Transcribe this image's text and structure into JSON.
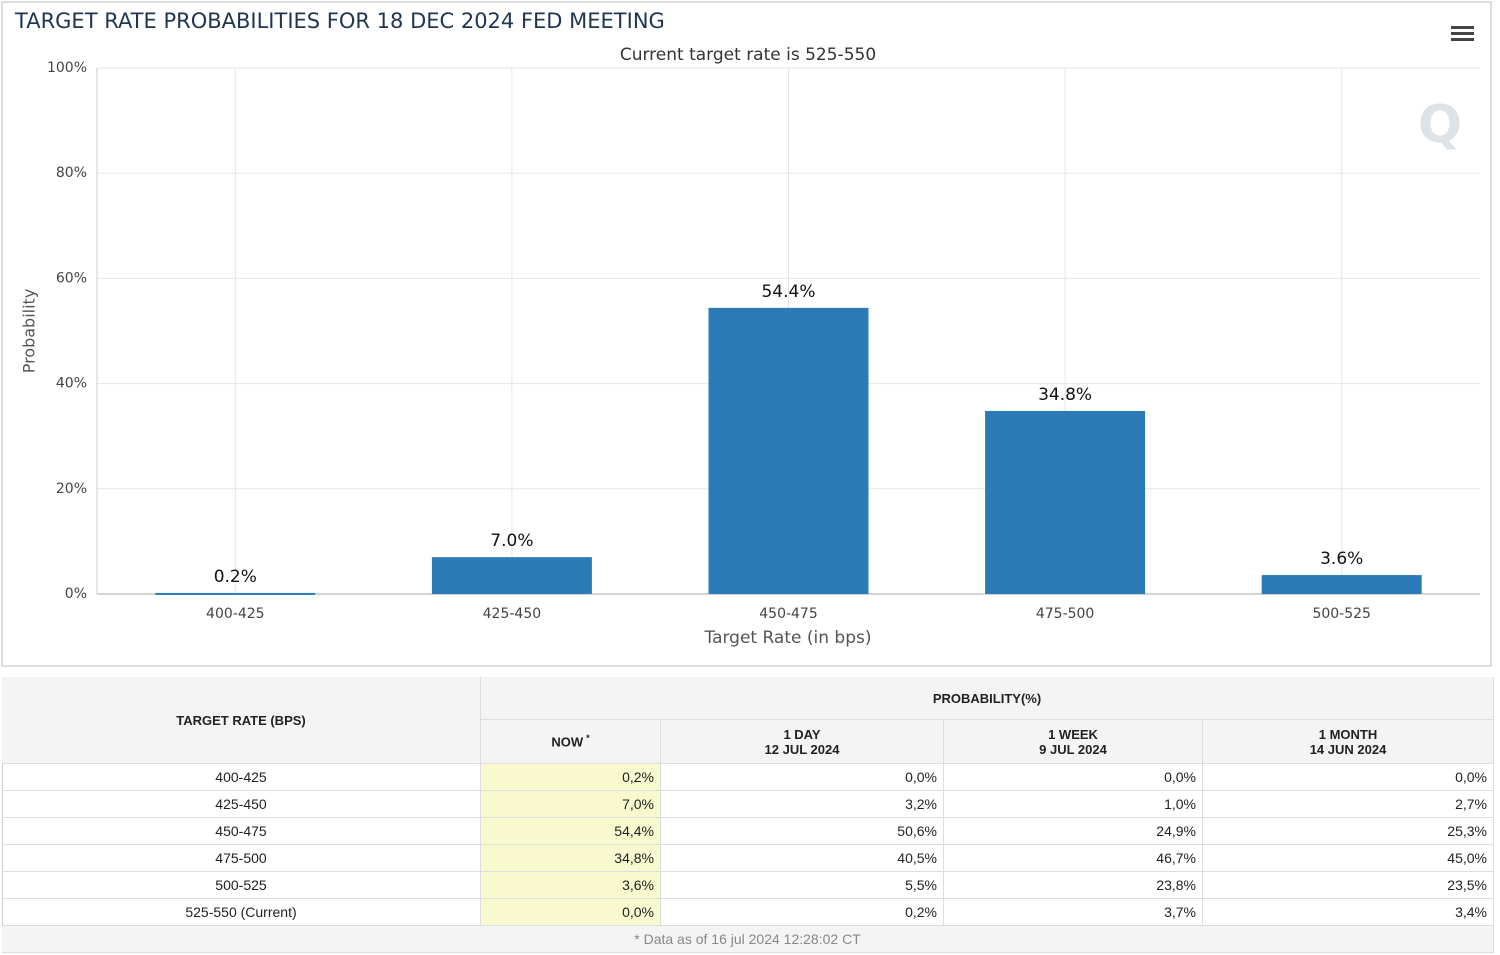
{
  "chart_data": {
    "type": "bar",
    "title": "TARGET RATE PROBABILITIES FOR 18 DEC 2024 FED MEETING",
    "subtitle": "Current target rate is 525-550",
    "x_label": "Target Rate (in bps)",
    "y_label": "Probability",
    "categories": [
      "400-425",
      "425-450",
      "450-475",
      "475-500",
      "500-525"
    ],
    "values": [
      0.2,
      7.0,
      54.4,
      34.8,
      3.6
    ],
    "value_labels": [
      "0.2%",
      "7.0%",
      "54.4%",
      "34.8%",
      "3.6%"
    ],
    "color": "#2b7bb9",
    "ylim": [
      0,
      100
    ],
    "yticks": [
      {
        "value": 0,
        "label": "0%"
      },
      {
        "value": 20,
        "label": "20%"
      },
      {
        "value": 40,
        "label": "40%"
      },
      {
        "value": 60,
        "label": "60%"
      },
      {
        "value": 80,
        "label": "80%"
      },
      {
        "value": 100,
        "label": "100%"
      }
    ],
    "grid": true
  },
  "table": {
    "header": "TARGET RATE (BPS)",
    "group_header": "PROBABILITY(%)",
    "columns": [
      {
        "title": "NOW",
        "note": "*"
      },
      {
        "title": "1 DAY",
        "date": "12 JUL 2024"
      },
      {
        "title": "1 WEEK",
        "date": "9 JUL 2024"
      },
      {
        "title": "1 MONTH",
        "date": "14 JUN 2024"
      }
    ],
    "rows": [
      [
        "400-425",
        "0,2%",
        "0,0%",
        "0,0%",
        "0,0%"
      ],
      [
        "425-450",
        "7,0%",
        "3,2%",
        "1,0%",
        "2,7%"
      ],
      [
        "450-475",
        "54,4%",
        "50,6%",
        "24,9%",
        "25,3%"
      ],
      [
        "475-500",
        "34,8%",
        "40,5%",
        "46,7%",
        "45,0%"
      ],
      [
        "500-525",
        "3,6%",
        "5,5%",
        "23,8%",
        "23,5%"
      ],
      [
        "525-550 (Current)",
        "0,0%",
        "0,2%",
        "3,7%",
        "3,4%"
      ]
    ],
    "footnote": "* Data as of 16 jul 2024 12:28:02 CT"
  }
}
